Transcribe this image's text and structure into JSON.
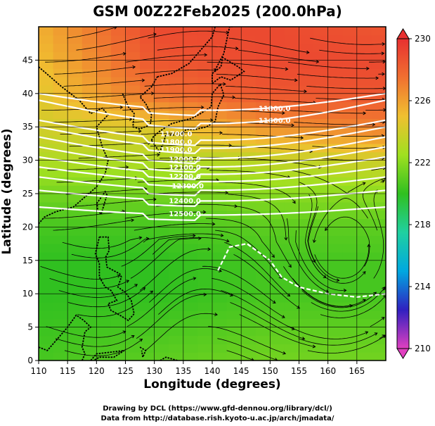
{
  "title": "GSM 00Z22Feb2025 (200.0hPa)",
  "credits": {
    "line1": "Drawing by DCL (https://www.gfd-dennou.org/library/dcl/)",
    "line2": "Data from http://database.rish.kyoto-u.ac.jp/arch/jmadata/"
  },
  "chart_data": {
    "type": "heatmap",
    "title": "GSM 00Z22Feb2025 (200.0hPa)",
    "xlabel": "Longitude (degrees)",
    "ylabel": "Latitude  (degrees)",
    "xlim": [
      110,
      170
    ],
    "ylim": [
      0,
      50
    ],
    "x_ticks": [
      "110",
      "115",
      "120",
      "125",
      "130",
      "135",
      "140",
      "145",
      "150",
      "155",
      "160",
      "165"
    ],
    "y_ticks": [
      "0",
      "5",
      "10",
      "15",
      "20",
      "25",
      "30",
      "35",
      "40",
      "45"
    ],
    "colorbar": {
      "range": [
        210,
        230
      ],
      "tick_labels": [
        "210",
        "214",
        "218",
        "222",
        "226",
        "230"
      ],
      "colors": [
        "#e040c0",
        "#3020c0",
        "#00a8e0",
        "#20d0a0",
        "#30c020",
        "#a0e020",
        "#f0c030",
        "#f07030",
        "#e83030"
      ]
    },
    "temperature_field_K": {
      "lat": [
        0,
        10,
        15,
        20,
        25,
        30,
        35,
        40,
        45,
        50
      ],
      "values_by_lon": [
        {
          "lon": 110,
          "values": [
            220.5,
            220,
            220,
            220.5,
            221.5,
            223,
            224,
            224.5,
            225,
            225.5
          ]
        },
        {
          "lon": 130,
          "values": [
            221,
            220,
            220,
            220.5,
            221.5,
            223,
            224.5,
            227.5,
            228.5,
            229
          ]
        },
        {
          "lon": 150,
          "values": [
            221.5,
            220.5,
            220.5,
            221,
            222,
            223.5,
            226.5,
            228.5,
            229,
            229
          ]
        },
        {
          "lon": 170,
          "values": [
            221.5,
            220.5,
            220.5,
            221,
            222,
            224,
            227,
            228.5,
            229,
            228.5
          ]
        }
      ]
    },
    "wind": {
      "description": "streamlines",
      "color": "#000000"
    },
    "height_contours": {
      "color": "#ffffff",
      "labels": [
        "11800.0",
        "11600.0",
        "11700.0",
        "11800.0",
        "11900.0",
        "12000.0",
        "12100.0",
        "12200.0",
        "12300.0",
        "12400.0",
        "12500.0"
      ]
    },
    "grid": true
  }
}
